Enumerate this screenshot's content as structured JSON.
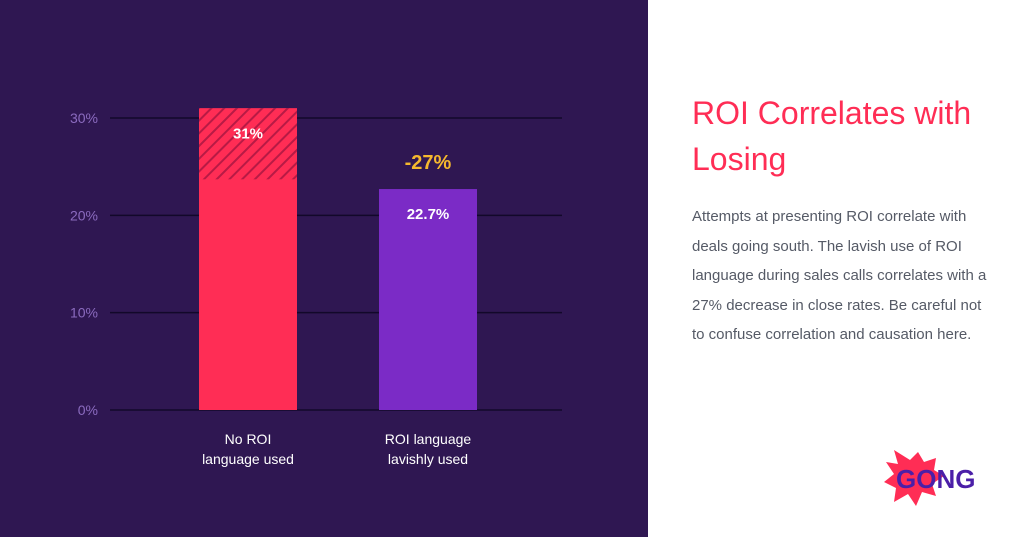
{
  "panel": {
    "title": "ROI Correlates with Losing",
    "body": "Attempts at presenting ROI correlate with deals going south. The lavish use of ROI language during sales calls correlates with a 27% decrease in close rates. Be careful not to confuse correlation and causation here."
  },
  "logo": {
    "text": "GONG",
    "burst_color": "#ff2d55",
    "text_color": "#4b1fa8"
  },
  "colors": {
    "background_dark": "#2f1752",
    "bar_primary": "#ff2d55",
    "bar_secondary": "#7b2bc6",
    "tick_label": "#8b6bbf",
    "gridline": "#12082a",
    "delta_label": "#f5b82e"
  },
  "chart_data": {
    "type": "bar",
    "categories": [
      "No ROI\nlanguage used",
      "ROI language\nlavishly used"
    ],
    "values": [
      31,
      22.7
    ],
    "value_labels": [
      "31%",
      "22.7%"
    ],
    "delta_label": "-27%",
    "ylim": [
      0,
      31
    ],
    "yticks": [
      0,
      10,
      20,
      30
    ],
    "ytick_labels": [
      "0%",
      "10%",
      "20%",
      "30%"
    ],
    "grid": true,
    "hatched_range": [
      23.7,
      31
    ]
  }
}
